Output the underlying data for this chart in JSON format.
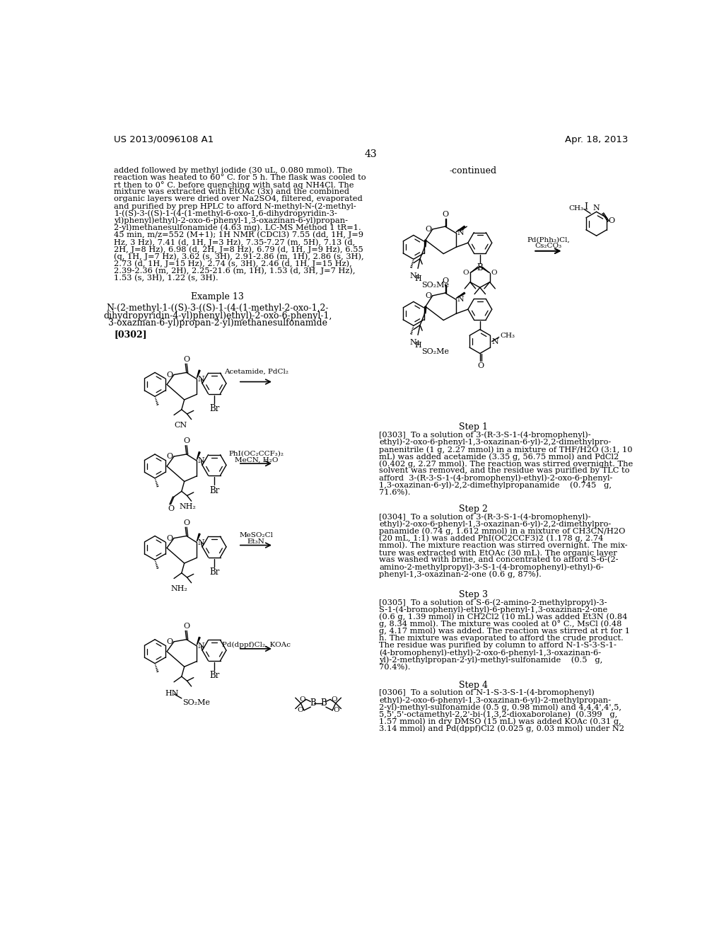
{
  "background_color": "#ffffff",
  "header_left": "US 2013/0096108 A1",
  "header_right": "Apr. 18, 2013",
  "page_number": "43",
  "figsize": [
    10.24,
    13.2
  ],
  "dpi": 100,
  "left_text": [
    "added followed by methyl iodide (30 uL, 0.080 mmol). The",
    "reaction was heated to 60° C. for 5 h. The flask was cooled to",
    "rt then to 0° C. before quenching with satd aq NH4Cl. The",
    "mixture was extracted with EtOAc (3x) and the combined",
    "organic layers were dried over Na2SO4, filtered, evaporated",
    "and purified by prep HPLC to afford N-methyl-N-(2-methyl-",
    "1-((S)-3-((S)-1-(4-(1-methyl-6-oxo-1,6-dihydropyridin-3-",
    "yl)phenyl)ethyl)-2-oxo-6-phenyl-1,3-oxazinan-6-yl)propan-",
    "2-yl)methanesulfonamide (4.63 mg). LC-MS Method 1 tR=1.",
    "45 min, m/z=552 (M+1); 1H NMR (CDCl3) 7.55 (dd, 1H, J=9",
    "Hz, 3 Hz), 7.41 (d, 1H, J=3 Hz), 7.35-7.27 (m, 5H), 7.13 (d,",
    "2H, J=8 Hz), 6.98 (d, 2H, J=8 Hz), 6.79 (d, 1H, J=9 Hz), 6.55",
    "(q, 1H, J=7 Hz), 3.62 (s, 3H), 2.91-2.86 (m, 1H), 2.86 (s, 3H),",
    "2.73 (d, 1H, J=15 Hz), 2.74 (s, 3H), 2.46 (d, 1H, J=15 Hz),",
    "2.39-2.36 (m, 2H), 2.25-21.6 (m, 1H), 1.53 (d, 3H, J=7 Hz),",
    "1.53 (s, 3H), 1.22 (s, 3H)."
  ],
  "step1_lines": [
    "[0303]  To a solution of 3-(R-3-S-1-(4-bromophenyl)-",
    "ethyl)-2-oxo-6-phenyl-1,3-oxazinan-6-yl)-2,2-dimethylpro-",
    "panenitrile (1 g, 2.27 mmol) in a mixture of THF/H2O (3:1, 10",
    "mL) was added acetamide (3.35 g, 56.75 mmol) and PdCl2",
    "(0.402 g, 2.27 mmol). The reaction was stirred overnight. The",
    "solvent was removed, and the residue was purified by TLC to",
    "afford  3-(R-3-S-1-(4-bromophenyl)-ethyl)-2-oxo-6-phenyl-",
    "1,3-oxazinan-6-yl)-2,2-dimethylpropanamide    (0.745   g,",
    "71.6%)."
  ],
  "step2_lines": [
    "[0304]  To a solution of 3-(R-3-S-1-(4-bromophenyl)-",
    "ethyl)-2-oxo-6-phenyl-1,3-oxazinan-6-yl)-2,2-dimethylpro-",
    "panamide (0.74 g, 1.612 mmol) in a mixture of CH3CN/H2O",
    "(20 mL, 1:1) was added PhI(OC2CCF3)2 (1.178 g, 2.74",
    "mmol). The mixture reaction was stirred overnight. The mix-",
    "ture was extracted with EtOAc (30 mL). The organic layer",
    "was washed with brine, and concentrated to afford S-6-(2-",
    "amino-2-methylpropyl)-3-S-1-(4-bromophenyl)-ethyl)-6-",
    "phenyl-1,3-oxazinan-2-one (0.6 g, 87%)."
  ],
  "step3_lines": [
    "[0305]  To a solution of S-6-(2-amino-2-methylpropyl)-3-",
    "S-1-(4-bromophenyl)-ethyl)-6-phenyl-1,3-oxazinan-2-one",
    "(0.6 g, 1.39 mmol) in CH2Cl2 (10 mL) was added Et3N (0.84",
    "g, 8.34 mmol). The mixture was cooled at 0° C., MsCl (0.48",
    "g, 4.17 mmol) was added. The reaction was stirred at rt for 1",
    "h. The mixture was evaporated to afford the crude product.",
    "The residue was purified by column to afford N-1-S-3-S-1-",
    "(4-bromophenyl)-ethyl)-2-oxo-6-phenyl-1,3-oxazinan-6-",
    "yl)-2-methylpropan-2-yl)-methyl-sulfonamide    (0.5   g,",
    "70.4%)."
  ],
  "step4_lines": [
    "[0306]  To a solution of N-1-S-3-S-1-(4-bromophenyl)",
    "ethyl)-2-oxo-6-phenyl-1,3-oxazinan-6-yl)-2-methylpropan-",
    "2-yl)-methyl-sulfonamide (0.5 g, 0.98 mmol) and 4,4,4',4',5,",
    "5,5',5'-octamethyl-2,2'-bi-(1,3,2-dioxaborolane)  (0.399   g,",
    "1.57 mmol) in dry DMSO (15 mL) was added KOAc (0.31 g,",
    "3.14 mmol) and Pd(dppf)Cl2 (0.025 g, 0.03 mmol) under N2"
  ]
}
